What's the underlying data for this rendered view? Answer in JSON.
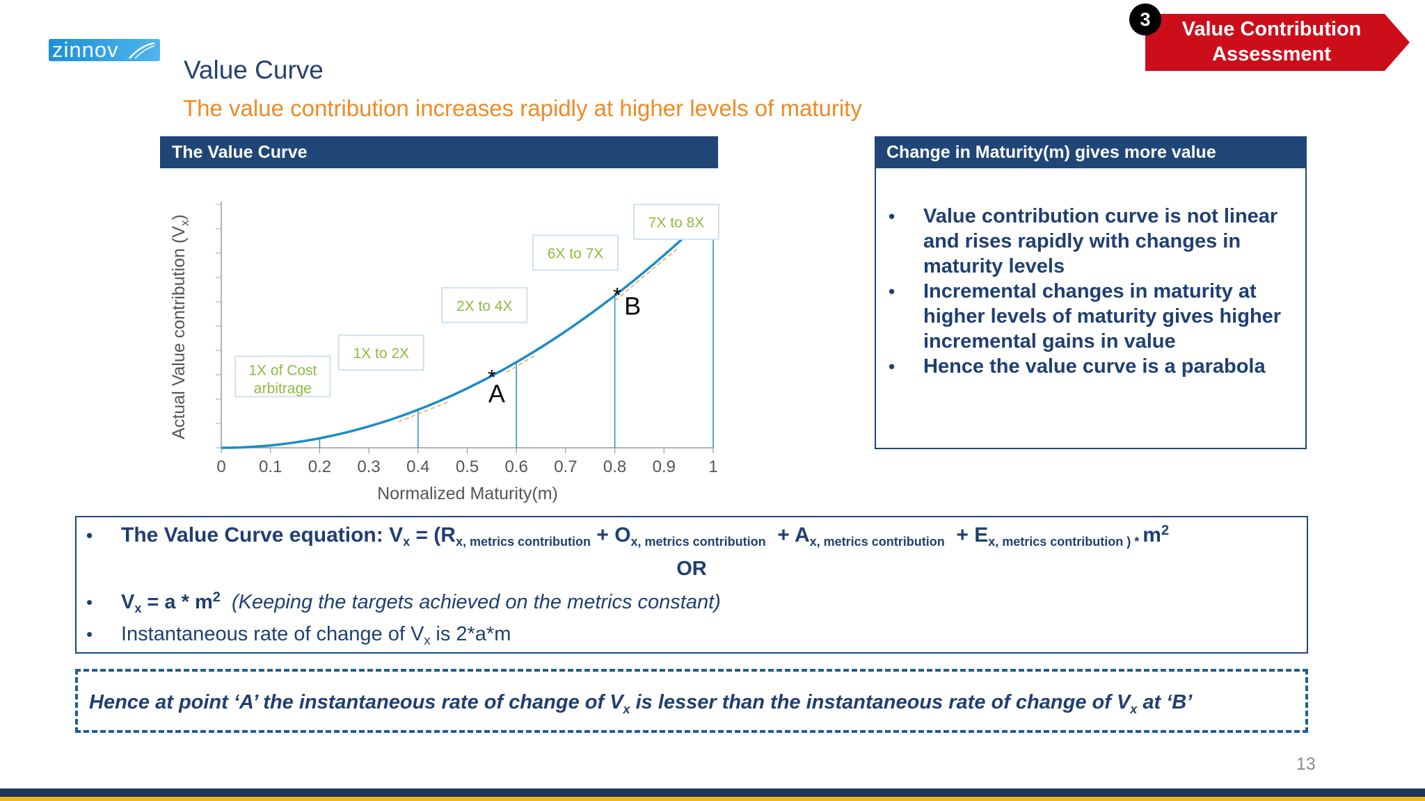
{
  "logo": {
    "text": "zinnov"
  },
  "page": {
    "title": "Value Curve",
    "subtitle": "The value contribution increases rapidly at higher levels of maturity",
    "page_number": "13"
  },
  "badge": {
    "number": "3",
    "label_line1": "Value Contribution",
    "label_line2": "Assessment",
    "color": "#cc0e1a"
  },
  "chart_panel": {
    "header": "The Value Curve"
  },
  "chart_data": {
    "type": "line",
    "xlabel": "Normalized Maturity(m)",
    "ylabel": "Actual Value contribution (V",
    "ylabel_sub": "x",
    "xlim": [
      0,
      1
    ],
    "ylim": [
      0,
      1
    ],
    "x_ticks": [
      "0",
      "0.1",
      "0.2",
      "0.3",
      "0.4",
      "0.5",
      "0.6",
      "0.7",
      "0.8",
      "0.9",
      "1"
    ],
    "series": [
      {
        "x": [
          0,
          0.1,
          0.2,
          0.3,
          0.4,
          0.5,
          0.6,
          0.7,
          0.8,
          0.9,
          1.0
        ],
        "y": [
          0,
          0.01,
          0.04,
          0.09,
          0.16,
          0.25,
          0.36,
          0.49,
          0.64,
          0.81,
          1.0
        ],
        "color": "#1b8cc8"
      }
    ],
    "verticals": [
      0.2,
      0.4,
      0.6,
      0.8,
      1.0
    ],
    "region_labels": [
      {
        "line1": "1X of Cost",
        "line2": "arbitrage"
      },
      {
        "line1": "1X  to 2X"
      },
      {
        "line1": "2X  to 4X"
      },
      {
        "line1": "6X  to 7X"
      },
      {
        "line1": "7X  to 8X"
      }
    ],
    "points": [
      {
        "label": "A",
        "x": 0.55,
        "y": 0.3025
      },
      {
        "label": "B",
        "x": 0.805,
        "y": 0.648
      }
    ],
    "asterisk": "*",
    "tangent_color": "#e7a35a",
    "label_color": "#8cbc3f"
  },
  "right_panel": {
    "header": "Change in Maturity(m) gives more value",
    "bullets": [
      "Value contribution curve is not linear and rises rapidly with changes in maturity levels",
      "Incremental changes in maturity at higher levels of maturity gives higher incremental gains in value",
      "Hence the value curve is a parabola"
    ]
  },
  "equation_box": {
    "prefix": "The Value Curve equation: V",
    "sub_x": "x",
    "eq_open": " = (R",
    "term_sub": "x, metrics contribution",
    "plus_o": " + O",
    "plus_a": " + A",
    "plus_e": " + E",
    "close": " ) * ",
    "m": "m",
    "sq": "2",
    "or": "OR",
    "alt_v": "V",
    "alt_sub": "x",
    "alt_eq": " = a * m",
    "alt_sq": "2",
    "alt_note": "(Keeping the targets achieved on the metrics constant)",
    "rate_pre": "Instantaneous rate of change of V",
    "rate_sub": "x",
    "rate_post": " is  2*a*m"
  },
  "conclusion": {
    "part1": "Hence at point ‘A’ the instantaneous rate of change of V",
    "sub1": "x",
    "part2": " is lesser than the instantaneous rate of change of V",
    "sub2": "x",
    "part3": " at  ‘B’"
  }
}
